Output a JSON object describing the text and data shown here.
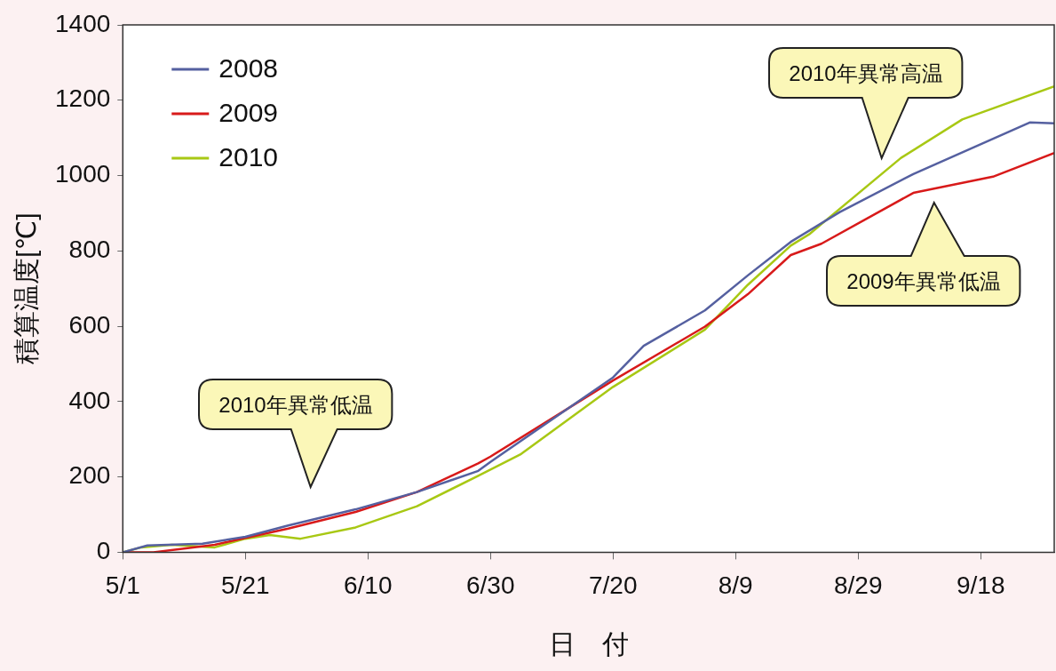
{
  "chart_data": {
    "type": "line",
    "xlabel": "日　付",
    "ylabel": "積算温度[℃]",
    "xlim": [
      "--05-01",
      "--09-30"
    ],
    "xticks": [
      {
        "value": "--05-01",
        "label": "5/1"
      },
      {
        "value": "--05-21",
        "label": "5/21"
      },
      {
        "value": "--06-10",
        "label": "6/10"
      },
      {
        "value": "--06-30",
        "label": "6/30"
      },
      {
        "value": "--07-20",
        "label": "7/20"
      },
      {
        "value": "--08-09",
        "label": "8/9"
      },
      {
        "value": "--08-29",
        "label": "8/29"
      },
      {
        "value": "--09-18",
        "label": "9/18"
      }
    ],
    "ylim": [
      0,
      1400
    ],
    "yticks": [
      0,
      200,
      400,
      600,
      800,
      1000,
      1200,
      1400
    ],
    "grid": false,
    "legend": "top left",
    "marker": "none",
    "line_style": "solid",
    "series": [
      {
        "name": "2008",
        "color": "#5560a0",
        "x": [
          "--05-01",
          "--05-05",
          "--05-14",
          "--05-21",
          "--05-28",
          "--06-08",
          "--06-18",
          "--06-28",
          "--06-30",
          "--07-20",
          "--07-25",
          "--08-04",
          "--08-11",
          "--08-18",
          "--08-26",
          "--09-07",
          "--09-26",
          "--09-30"
        ],
        "values": [
          0,
          18,
          23,
          41,
          71,
          114,
          160,
          216,
          240,
          464,
          548,
          642,
          735,
          824,
          903,
          1004,
          1141,
          1139
        ]
      },
      {
        "name": "2009",
        "color": "#d81a1a",
        "x": [
          "--05-01",
          "--05-06",
          "--05-11",
          "--05-16",
          "--05-21",
          "--05-28",
          "--06-08",
          "--06-18",
          "--06-28",
          "--06-30",
          "--07-20",
          "--08-04",
          "--08-11",
          "--08-18",
          "--08-23",
          "--09-07",
          "--09-20",
          "--09-30"
        ],
        "values": [
          0,
          0,
          10,
          20,
          38,
          63,
          107,
          160,
          236,
          254,
          456,
          599,
          685,
          789,
          819,
          954,
          997,
          1060
        ]
      },
      {
        "name": "2010",
        "color": "#a8c814",
        "x": [
          "--05-01",
          "--05-04",
          "--05-09",
          "--05-16",
          "--05-21",
          "--05-25",
          "--05-30",
          "--06-08",
          "--06-18",
          "--06-28",
          "--07-05",
          "--07-20",
          "--08-04",
          "--08-11",
          "--08-18",
          "--08-21",
          "--09-05",
          "--09-15",
          "--09-30"
        ],
        "values": [
          0,
          13,
          20,
          13,
          36,
          46,
          36,
          66,
          122,
          203,
          261,
          439,
          591,
          710,
          814,
          844,
          1047,
          1149,
          1237
        ]
      }
    ],
    "annotations": [
      "2010年異常低温",
      "2010年異常高温",
      "2009年異常低温"
    ]
  }
}
